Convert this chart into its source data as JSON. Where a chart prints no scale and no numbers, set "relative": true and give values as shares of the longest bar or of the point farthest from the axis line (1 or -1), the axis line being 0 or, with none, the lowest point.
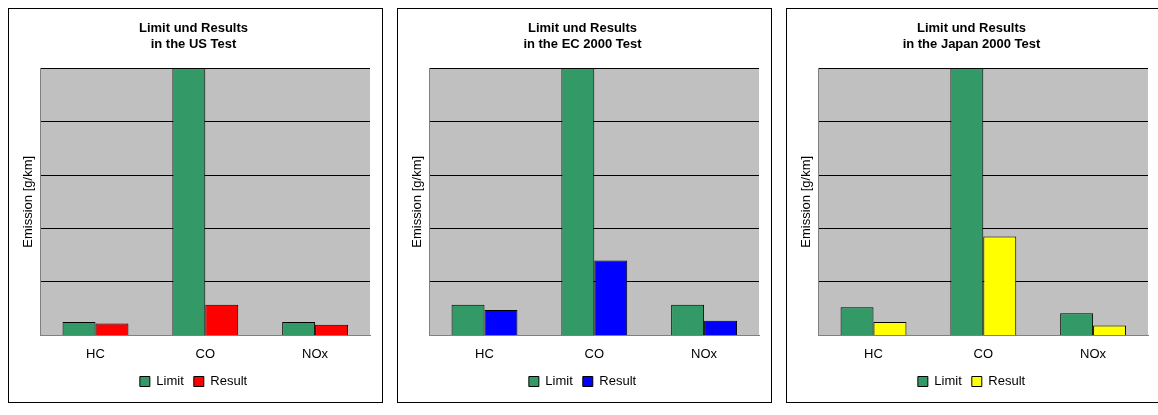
{
  "chart_data": [
    {
      "type": "bar",
      "title": "Limit und Results\nin the US Test",
      "ylabel": "Emission [g/km]",
      "categories": [
        "HC",
        "CO",
        "NOx"
      ],
      "relative": true,
      "grid": "y",
      "legend": "bottom",
      "series": [
        {
          "name": "Limit",
          "color": "#339966",
          "values": [
            0.05,
            1,
            0.05
          ]
        },
        {
          "name": "Result",
          "color": "#ff0000",
          "values": [
            0.045,
            0.115,
            0.04
          ]
        }
      ]
    },
    {
      "type": "bar",
      "title": "Limit und Results\nin the EC 2000 Test",
      "ylabel": "Emission [g/km]",
      "categories": [
        "HC",
        "CO",
        "NOx"
      ],
      "relative": true,
      "grid": "y",
      "legend": "bottom",
      "series": [
        {
          "name": "Limit",
          "color": "#339966",
          "values": [
            0.115,
            1,
            0.115
          ]
        },
        {
          "name": "Result",
          "color": "#0000ff",
          "values": [
            0.095,
            0.28,
            0.055
          ]
        }
      ]
    },
    {
      "type": "bar",
      "title": "Limit und Results\nin the Japan 2000 Test",
      "ylabel": "Emission [g/km]",
      "categories": [
        "HC",
        "CO",
        "NOx"
      ],
      "relative": true,
      "grid": "y",
      "legend": "bottom",
      "series": [
        {
          "name": "Limit",
          "color": "#339966",
          "values": [
            0.105,
            1,
            0.083
          ]
        },
        {
          "name": "Result",
          "color": "#ffff00",
          "values": [
            0.05,
            0.37,
            0.037
          ]
        }
      ]
    }
  ]
}
